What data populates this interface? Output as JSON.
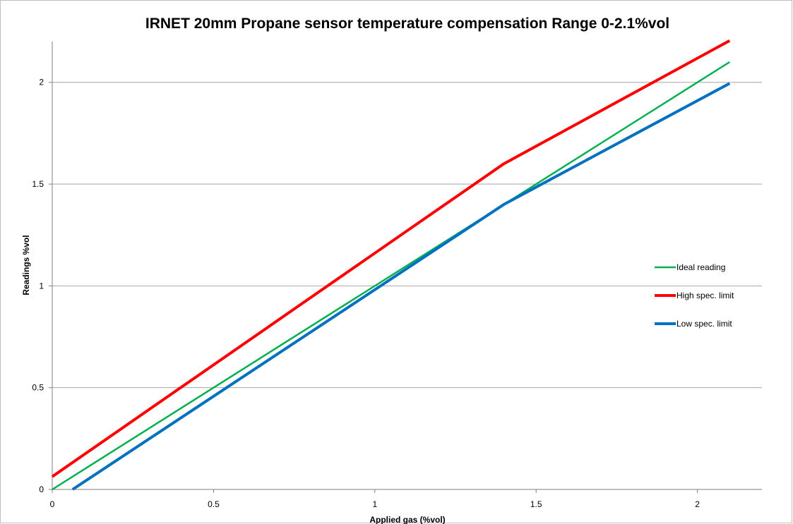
{
  "chart_data": {
    "type": "line",
    "title": "IRNET 20mm Propane sensor temperature compensation Range 0-2.1%vol",
    "xlabel": "Applied gas (%vol)",
    "ylabel": "Readings %vol",
    "xlim": [
      0,
      2.2
    ],
    "ylim": [
      0,
      2.2
    ],
    "x_ticks": [
      0,
      0.5,
      1,
      1.5,
      2
    ],
    "y_ticks": [
      0,
      0.5,
      1,
      1.5,
      2
    ],
    "x_tick_labels": [
      "0",
      "0.5",
      "1",
      "1.5",
      "2"
    ],
    "y_tick_labels": [
      "0",
      "0.5",
      "1",
      "1.5",
      "2"
    ],
    "grid": "horizontal",
    "legend_position": "right",
    "series": [
      {
        "name": "Ideal reading",
        "color": "#00b050",
        "width": 2.5,
        "points": [
          [
            0,
            0
          ],
          [
            2.1,
            2.1
          ]
        ]
      },
      {
        "name": "High spec. limit",
        "color": "#ff0000",
        "width": 4,
        "points": [
          [
            0,
            0.063
          ],
          [
            1.4,
            1.6
          ],
          [
            2.1,
            2.205
          ]
        ]
      },
      {
        "name": "Low spec. limit",
        "color": "#0070c0",
        "width": 4,
        "points": [
          [
            0.063,
            0
          ],
          [
            1.4,
            1.4
          ],
          [
            2.1,
            1.995
          ]
        ]
      }
    ]
  }
}
